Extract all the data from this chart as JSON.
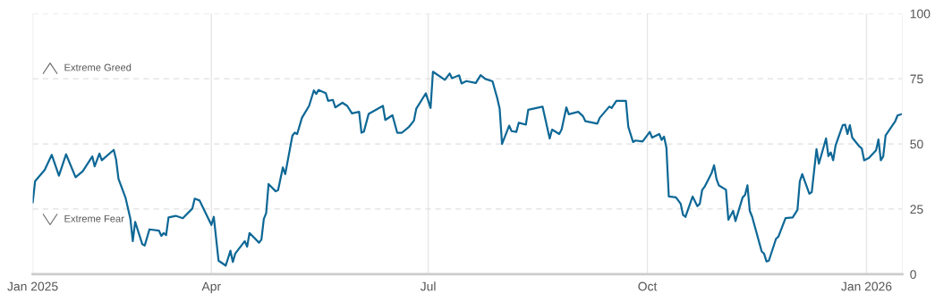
{
  "chart_data": {
    "type": "line",
    "annotations": [
      "Extreme Greed",
      "Extreme Fear"
    ],
    "x": [
      "2025-01-16",
      "2025-01-17",
      "2025-01-21",
      "2025-01-24",
      "2025-01-27",
      "2025-01-30",
      "2025-02-03",
      "2025-02-06",
      "2025-02-10",
      "2025-02-11",
      "2025-02-13",
      "2025-02-14",
      "2025-02-19",
      "2025-02-20",
      "2025-02-21",
      "2025-02-24",
      "2025-02-26",
      "2025-02-27",
      "2025-02-28",
      "2025-03-03",
      "2025-03-04",
      "2025-03-06",
      "2025-03-10",
      "2025-03-11",
      "2025-03-12",
      "2025-03-13",
      "2025-03-14",
      "2025-03-17",
      "2025-03-20",
      "2025-03-24",
      "2025-03-25",
      "2025-03-27",
      "2025-04-01",
      "2025-04-02",
      "2025-04-04",
      "2025-04-07",
      "2025-04-09",
      "2025-04-10",
      "2025-04-11",
      "2025-04-15",
      "2025-04-16",
      "2025-04-17",
      "2025-04-21",
      "2025-04-22",
      "2025-04-23",
      "2025-04-24",
      "2025-04-25",
      "2025-04-28",
      "2025-04-29",
      "2025-05-01",
      "2025-05-02",
      "2025-05-05",
      "2025-05-06",
      "2025-05-07",
      "2025-05-09",
      "2025-05-12",
      "2025-05-14",
      "2025-05-15",
      "2025-05-16",
      "2025-05-19",
      "2025-05-20",
      "2025-05-22",
      "2025-05-23",
      "2025-05-26",
      "2025-05-28",
      "2025-05-30",
      "2025-06-02",
      "2025-06-03",
      "2025-06-04",
      "2025-06-06",
      "2025-06-12",
      "2025-06-13",
      "2025-06-16",
      "2025-06-18",
      "2025-06-20",
      "2025-06-23",
      "2025-06-25",
      "2025-06-26",
      "2025-06-30",
      "2025-07-02",
      "2025-07-03",
      "2025-07-08",
      "2025-07-10",
      "2025-07-11",
      "2025-07-14",
      "2025-07-15",
      "2025-07-17",
      "2025-07-21",
      "2025-07-23",
      "2025-07-25",
      "2025-07-28",
      "2025-07-30",
      "2025-07-31",
      "2025-08-01",
      "2025-08-04",
      "2025-08-05",
      "2025-08-07",
      "2025-08-08",
      "2025-08-11",
      "2025-08-12",
      "2025-08-18",
      "2025-08-21",
      "2025-08-22",
      "2025-08-25",
      "2025-08-26",
      "2025-08-28",
      "2025-08-29",
      "2025-09-02",
      "2025-09-04",
      "2025-09-05",
      "2025-09-10",
      "2025-09-11",
      "2025-09-15",
      "2025-09-16",
      "2025-09-18",
      "2025-09-22",
      "2025-09-23",
      "2025-09-25",
      "2025-09-26",
      "2025-09-29",
      "2025-10-02",
      "2025-10-03",
      "2025-10-06",
      "2025-10-07",
      "2025-10-08",
      "2025-10-09",
      "2025-10-10",
      "2025-10-13",
      "2025-10-15",
      "2025-10-16",
      "2025-10-17",
      "2025-10-20",
      "2025-10-22",
      "2025-10-23",
      "2025-10-24",
      "2025-10-25",
      "2025-10-28",
      "2025-10-29",
      "2025-10-30",
      "2025-10-31",
      "2025-11-03",
      "2025-11-04",
      "2025-11-06",
      "2025-11-07",
      "2025-11-10",
      "2025-11-11",
      "2025-11-12",
      "2025-11-13",
      "2025-11-14",
      "2025-11-18",
      "2025-11-19",
      "2025-11-20",
      "2025-11-21",
      "2025-11-24",
      "2025-11-25",
      "2025-11-28",
      "2025-12-01",
      "2025-12-03",
      "2025-12-04",
      "2025-12-05",
      "2025-12-08",
      "2025-12-09",
      "2025-12-11",
      "2025-12-12",
      "2025-12-15",
      "2025-12-16",
      "2025-12-17",
      "2025-12-18",
      "2025-12-19",
      "2025-12-22",
      "2025-12-23",
      "2025-12-24",
      "2025-12-25",
      "2025-12-26",
      "2025-12-29",
      "2025-12-30",
      "2025-12-31",
      "2026-01-02",
      "2026-01-05",
      "2026-01-06",
      "2026-01-07",
      "2026-01-08",
      "2026-01-09",
      "2026-01-13",
      "2026-01-14",
      "2026-01-16"
    ],
    "series": [
      {
        "color": "#0e6896",
        "values": [
          27.5,
          35.7,
          40,
          45.8,
          37.8,
          46,
          37.2,
          39.5,
          45.2,
          41.4,
          46.3,
          43.7,
          47.7,
          44,
          36.6,
          29.2,
          21.2,
          12.7,
          20.1,
          11.5,
          11,
          17.2,
          16.7,
          14.7,
          15.8,
          15,
          21.8,
          22.4,
          21.5,
          25.2,
          29,
          28.3,
          18.9,
          22,
          5.2,
          3.3,
          9,
          4.7,
          7.9,
          12.7,
          10.6,
          15.8,
          12.1,
          13.3,
          21.2,
          23.5,
          34.6,
          31.8,
          32.3,
          41,
          38.4,
          53.2,
          54.3,
          53.8,
          60,
          64.6,
          70.5,
          69.2,
          70.7,
          69.5,
          66.5,
          66.9,
          64,
          65.8,
          64.6,
          61.7,
          62.3,
          54.3,
          54.7,
          61.5,
          64.6,
          59.2,
          61,
          54.3,
          54.3,
          56.6,
          58.9,
          63.5,
          69.4,
          63.8,
          77.7,
          74.6,
          77,
          75.2,
          76.3,
          73.2,
          74.1,
          73.4,
          76.4,
          74.9,
          74,
          67.5,
          63.5,
          50,
          57,
          54.9,
          54.6,
          58.1,
          57.4,
          63.1,
          64.3,
          52.1,
          55.5,
          53.8,
          55.5,
          64,
          61.4,
          62.3,
          60.6,
          58.7,
          57.8,
          60,
          64.3,
          63.8,
          66.5,
          66.5,
          56.6,
          50.7,
          51.3,
          50.9,
          54.6,
          52.4,
          53.8,
          51.5,
          52.8,
          48.6,
          29.8,
          29.5,
          27,
          22.7,
          22,
          29.8,
          26.1,
          27,
          32.3,
          33.5,
          38.9,
          41.8,
          36.6,
          34.1,
          32.4,
          20.9,
          24.3,
          20.4,
          29.5,
          30.4,
          34.1,
          24.3,
          22,
          8.7,
          7.9,
          4.9,
          5.2,
          13.6,
          14.4,
          21.5,
          21.8,
          24.7,
          35.7,
          38.4,
          30.9,
          31.5,
          48,
          42.4,
          52.1,
          45.3,
          46.7,
          43.7,
          49.4,
          57.2,
          57.4,
          53.8,
          57.2,
          52.4,
          49,
          48.3,
          43.7,
          44.6,
          47.5,
          51.7,
          43.7,
          45.2,
          53.2,
          58.6,
          60.9,
          61.5
        ]
      }
    ],
    "xlim": [
      "2025-01-16",
      "2026-01-16"
    ],
    "xticks": [
      {
        "value": "2025-01-16",
        "label": "Jan 2025"
      },
      {
        "value": "2025-04-01",
        "label": "Apr"
      },
      {
        "value": "2025-07-01",
        "label": "Jul"
      },
      {
        "value": "2025-10-01",
        "label": "Oct"
      },
      {
        "value": "2026-01-01",
        "label": "Jan 2026"
      }
    ],
    "ylim": [
      0,
      100
    ],
    "yticks": [
      0,
      25,
      50,
      75,
      100
    ],
    "grid": true,
    "line_style": "solid",
    "marker": "none"
  }
}
